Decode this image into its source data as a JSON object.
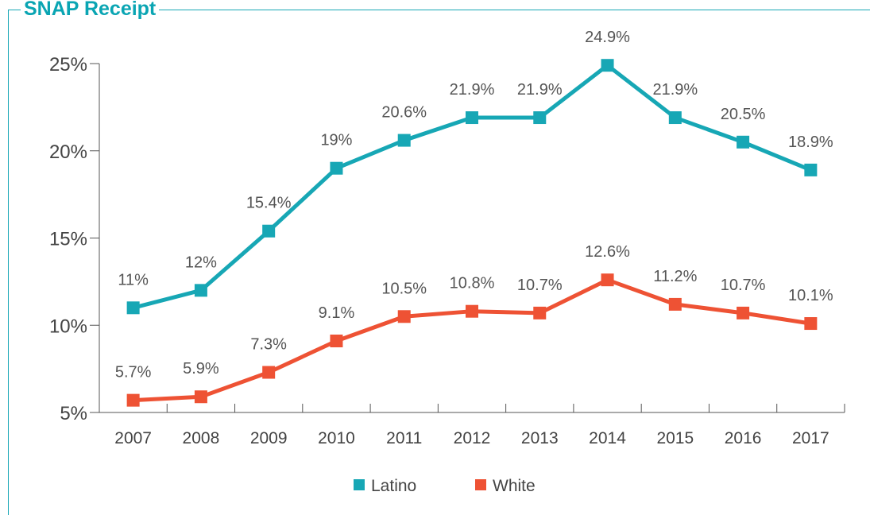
{
  "chart_data": {
    "type": "line",
    "title": "SNAP Receipt",
    "categories": [
      "2007",
      "2008",
      "2009",
      "2010",
      "2011",
      "2012",
      "2013",
      "2014",
      "2015",
      "2016",
      "2017"
    ],
    "series": [
      {
        "name": "Latino",
        "color": "#17a7b5",
        "values": [
          11,
          12,
          15.4,
          19,
          20.6,
          21.9,
          21.9,
          24.9,
          21.9,
          20.5,
          18.9
        ],
        "labels": [
          "11%",
          "12%",
          "15.4%",
          "19%",
          "20.6%",
          "21.9%",
          "21.9%",
          "24.9%",
          "21.9%",
          "20.5%",
          "18.9%"
        ]
      },
      {
        "name": "White",
        "color": "#ee5234",
        "values": [
          5.7,
          5.9,
          7.3,
          9.1,
          10.5,
          10.8,
          10.7,
          12.6,
          11.2,
          10.7,
          10.1
        ],
        "labels": [
          "5.7%",
          "5.9%",
          "7.3%",
          "9.1%",
          "10.5%",
          "10.8%",
          "10.7%",
          "12.6%",
          "11.2%",
          "10.7%",
          "10.1%"
        ]
      }
    ],
    "ylim": [
      5,
      25
    ],
    "yticks": [
      5,
      10,
      15,
      20,
      25
    ],
    "ytick_labels": [
      "5%",
      "10%",
      "15%",
      "20%",
      "25%"
    ],
    "grid": false,
    "legend_position": "bottom-center"
  }
}
